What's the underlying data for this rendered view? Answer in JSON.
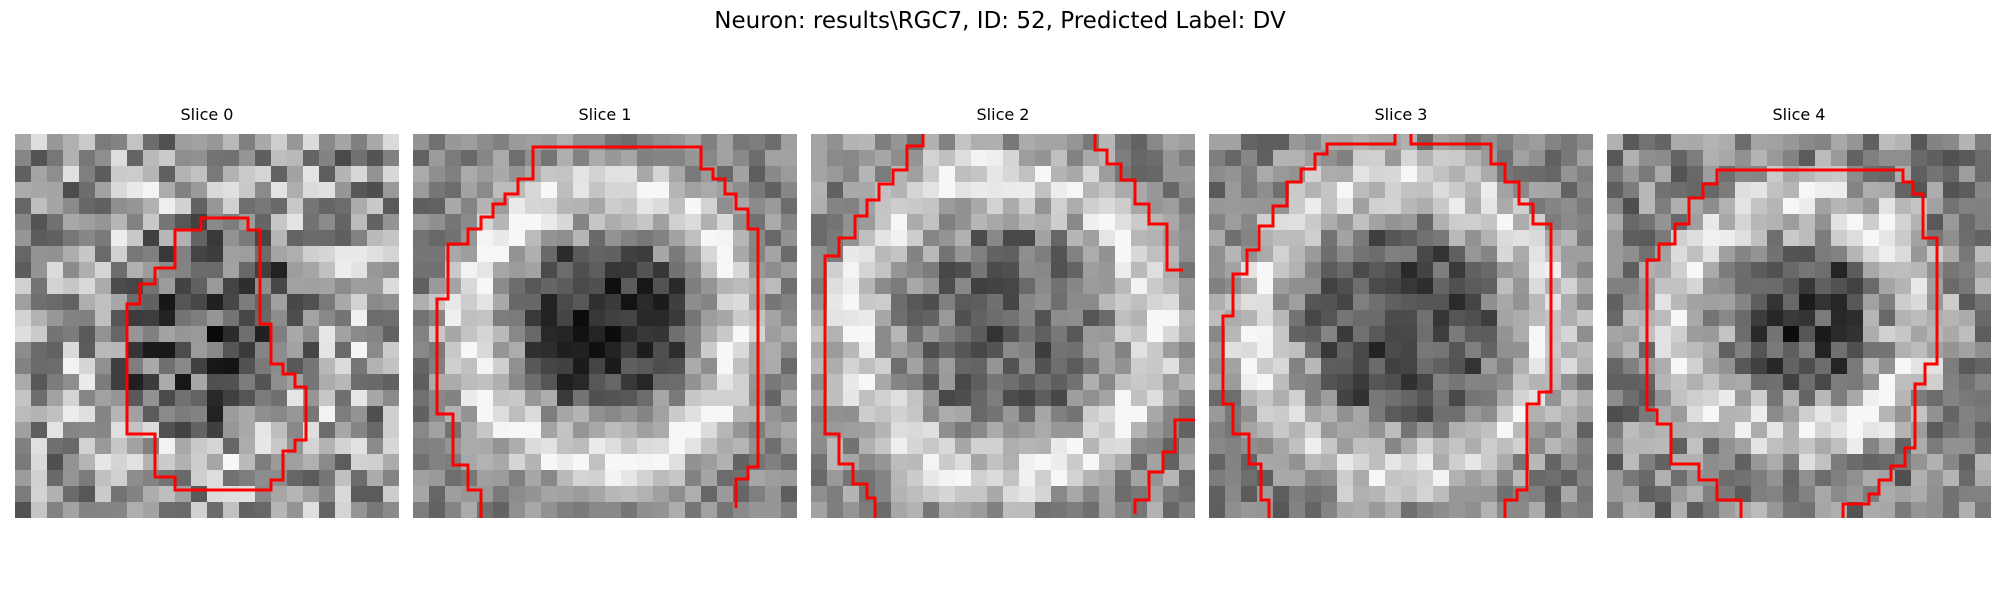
{
  "figure": {
    "title": "Neuron: results\\RGC7, ID: 52, Predicted Label: DV"
  },
  "colors": {
    "contour": "#ff0000",
    "background": "#ffffff"
  },
  "panels": [
    {
      "title": "Slice 0"
    },
    {
      "title": "Slice 1"
    },
    {
      "title": "Slice 2"
    },
    {
      "title": "Slice 3"
    },
    {
      "title": "Slice 4"
    }
  ]
}
